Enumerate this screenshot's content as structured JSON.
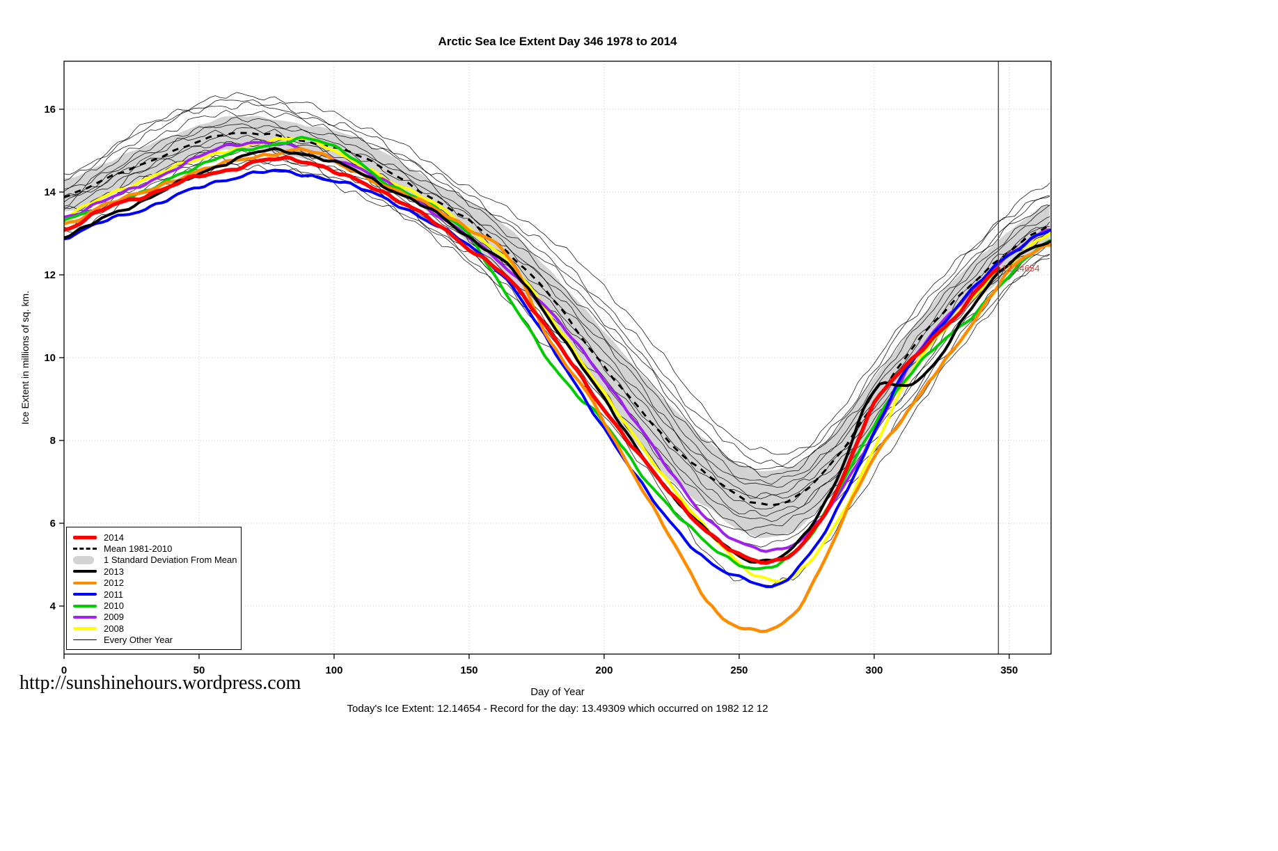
{
  "page": {
    "title": "Arctic Sea Ice Extent Day 346 1978 to 2014",
    "url_text": "http://sunshinehours.wordpress.com",
    "footer_caption": "Today's Ice Extent: 12.14654  - Record for the day: 13.49309 which occurred on 1982 12 12"
  },
  "chart_data": {
    "type": "line",
    "title": "Arctic Sea Ice Extent Day 346 1978 to 2014",
    "xlabel": "Day of Year",
    "ylabel": "Ice Extent in millions of sq. km.",
    "xlim": [
      0,
      365.5
    ],
    "ylim": [
      2.84,
      17.16
    ],
    "x_ticks": [
      0,
      50,
      100,
      150,
      200,
      250,
      300,
      350
    ],
    "y_ticks": [
      4,
      6,
      8,
      10,
      12,
      14,
      16
    ],
    "grid": "dotted",
    "legend_position": "bottom-left",
    "today_day": 346,
    "today_extent": 12.14654,
    "record_for_day": 13.49309,
    "record_date": "1982 12 12",
    "marker_line_x": 346,
    "annotation": {
      "x": 346,
      "y": 12.15,
      "text": "12.14654",
      "color": "#ff3333"
    },
    "band": {
      "name": "1 Standard Deviation From Mean",
      "color": "#d3d3d3",
      "x": [
        0,
        15,
        30,
        45,
        60,
        75,
        90,
        105,
        120,
        135,
        150,
        165,
        180,
        195,
        210,
        225,
        240,
        255,
        270,
        285,
        300,
        315,
        330,
        345,
        365
      ],
      "upper": [
        14.3,
        14.7,
        15.1,
        15.5,
        15.8,
        15.8,
        15.6,
        15.4,
        14.9,
        14.3,
        13.8,
        13.1,
        12.1,
        11.0,
        9.9,
        8.8,
        7.9,
        7.3,
        7.4,
        8.2,
        9.5,
        10.8,
        11.9,
        12.8,
        13.7
      ],
      "lower": [
        13.5,
        13.9,
        14.3,
        14.7,
        15.0,
        15.0,
        14.8,
        14.6,
        14.1,
        13.5,
        12.8,
        11.9,
        10.9,
        9.4,
        8.1,
        7.0,
        6.3,
        5.7,
        5.8,
        6.8,
        8.3,
        9.8,
        10.9,
        11.8,
        12.7
      ]
    },
    "mean": {
      "name": "Mean 1981-2010",
      "color": "#000000",
      "dashed": true,
      "width": 3,
      "x": [
        0,
        15,
        30,
        45,
        60,
        75,
        90,
        105,
        120,
        135,
        150,
        165,
        180,
        195,
        210,
        225,
        240,
        255,
        270,
        285,
        300,
        315,
        330,
        345,
        365
      ],
      "y": [
        13.9,
        14.3,
        14.7,
        15.1,
        15.4,
        15.4,
        15.2,
        15.0,
        14.5,
        13.9,
        13.3,
        12.5,
        11.5,
        10.2,
        9.0,
        7.9,
        7.1,
        6.5,
        6.6,
        7.5,
        8.9,
        10.3,
        11.4,
        12.3,
        13.2
      ]
    },
    "series": [
      {
        "name": "2014",
        "color": "#ff0000",
        "width": 5.5,
        "x": [
          0,
          15,
          30,
          45,
          60,
          75,
          90,
          105,
          120,
          135,
          150,
          165,
          180,
          195,
          210,
          225,
          240,
          255,
          270,
          285,
          300,
          315,
          330,
          346
        ],
        "y": [
          13.1,
          13.6,
          13.9,
          14.3,
          14.5,
          14.8,
          14.7,
          14.4,
          13.9,
          13.4,
          12.6,
          11.9,
          10.6,
          9.2,
          7.9,
          6.7,
          5.7,
          5.1,
          5.3,
          6.6,
          8.9,
          10.0,
          11.0,
          12.15
        ]
      },
      {
        "name": "2013",
        "color": "#000000",
        "width": 4,
        "x": [
          0,
          15,
          30,
          45,
          60,
          75,
          90,
          105,
          120,
          135,
          150,
          165,
          180,
          195,
          210,
          225,
          240,
          255,
          270,
          285,
          300,
          310,
          320,
          335,
          350,
          365
        ],
        "y": [
          12.9,
          13.4,
          13.8,
          14.3,
          14.7,
          15.0,
          14.9,
          14.6,
          14.1,
          13.6,
          12.9,
          12.2,
          10.9,
          9.5,
          8.0,
          6.7,
          5.7,
          5.1,
          5.4,
          6.9,
          9.2,
          9.3,
          9.7,
          11.1,
          12.3,
          12.8
        ]
      },
      {
        "name": "2012",
        "color": "#ff8c00",
        "width": 4.5,
        "x": [
          0,
          15,
          30,
          45,
          60,
          75,
          90,
          105,
          120,
          135,
          150,
          165,
          180,
          195,
          210,
          225,
          240,
          250,
          260,
          270,
          280,
          290,
          300,
          310,
          320,
          335,
          350,
          365
        ],
        "y": [
          13.2,
          13.7,
          14.0,
          14.4,
          14.7,
          14.9,
          15.0,
          14.6,
          14.1,
          13.7,
          13.1,
          12.4,
          10.4,
          9.0,
          7.3,
          5.6,
          4.0,
          3.5,
          3.4,
          3.8,
          4.9,
          6.3,
          7.6,
          8.5,
          9.4,
          10.7,
          12.1,
          12.7
        ]
      },
      {
        "name": "2011",
        "color": "#0000ff",
        "width": 4,
        "x": [
          0,
          15,
          30,
          45,
          60,
          75,
          90,
          105,
          120,
          135,
          150,
          165,
          180,
          195,
          210,
          225,
          240,
          255,
          265,
          280,
          295,
          310,
          325,
          340,
          355,
          365
        ],
        "y": [
          12.9,
          13.3,
          13.6,
          14.0,
          14.3,
          14.5,
          14.4,
          14.2,
          13.8,
          13.3,
          12.7,
          11.8,
          10.3,
          8.8,
          7.3,
          6.0,
          5.0,
          4.6,
          4.55,
          5.6,
          7.5,
          9.5,
          10.8,
          11.9,
          12.7,
          13.1
        ]
      },
      {
        "name": "2010",
        "color": "#00cc00",
        "width": 4,
        "x": [
          0,
          15,
          30,
          45,
          60,
          75,
          90,
          105,
          120,
          135,
          150,
          160,
          170,
          180,
          190,
          200,
          215,
          230,
          245,
          260,
          275,
          290,
          305,
          320,
          335,
          350,
          365
        ],
        "y": [
          13.3,
          13.7,
          14.0,
          14.5,
          14.9,
          15.1,
          15.3,
          14.9,
          14.2,
          13.7,
          13.0,
          11.9,
          10.9,
          9.9,
          9.1,
          8.4,
          7.1,
          6.0,
          5.2,
          4.9,
          5.6,
          7.2,
          8.9,
          10.1,
          10.9,
          12.0,
          12.8
        ]
      },
      {
        "name": "2009",
        "color": "#a020f0",
        "width": 4,
        "x": [
          0,
          15,
          30,
          45,
          60,
          75,
          90,
          105,
          120,
          135,
          150,
          165,
          180,
          195,
          210,
          225,
          240,
          255,
          270,
          285,
          300,
          315,
          330,
          345,
          365
        ],
        "y": [
          13.4,
          13.8,
          14.2,
          14.7,
          15.1,
          15.2,
          15.0,
          14.7,
          14.2,
          13.6,
          12.9,
          12.1,
          11.1,
          9.9,
          8.6,
          7.2,
          6.0,
          5.4,
          5.5,
          6.5,
          8.2,
          10.0,
          11.2,
          12.2,
          13.1
        ]
      },
      {
        "name": "2008",
        "color": "#ffff00",
        "width": 4,
        "x": [
          0,
          15,
          30,
          45,
          60,
          75,
          90,
          105,
          120,
          135,
          150,
          165,
          180,
          195,
          210,
          225,
          240,
          255,
          270,
          285,
          300,
          315,
          330,
          345,
          365
        ],
        "y": [
          13.4,
          13.9,
          14.3,
          14.7,
          15.0,
          15.2,
          15.3,
          14.8,
          14.3,
          13.8,
          13.1,
          12.3,
          11.0,
          9.6,
          8.2,
          6.9,
          5.7,
          4.8,
          4.7,
          5.9,
          7.8,
          9.8,
          11.0,
          12.0,
          13.0
        ]
      }
    ],
    "other_years": {
      "name": "Every Other Year",
      "color": "#000000",
      "x": [
        0,
        30,
        60,
        90,
        120,
        150,
        180,
        210,
        240,
        260,
        280,
        310,
        340,
        365
      ],
      "lines": [
        [
          14.3,
          15.6,
          16.3,
          16.1,
          15.3,
          14.1,
          12.9,
          11.0,
          8.6,
          7.7,
          8.2,
          10.8,
          12.9,
          14.2
        ],
        [
          14.1,
          15.4,
          16.1,
          15.9,
          15.1,
          13.9,
          12.6,
          10.6,
          8.3,
          7.5,
          8.0,
          10.6,
          12.8,
          14.0
        ],
        [
          14.4,
          15.5,
          16.2,
          15.8,
          15.0,
          13.8,
          12.4,
          10.4,
          8.0,
          7.3,
          7.9,
          10.4,
          12.6,
          13.9
        ],
        [
          13.9,
          15.2,
          15.9,
          15.7,
          14.9,
          13.7,
          12.2,
          10.2,
          7.9,
          7.2,
          7.8,
          10.2,
          12.5,
          13.7
        ],
        [
          14.0,
          15.0,
          15.7,
          15.5,
          14.7,
          13.5,
          12.0,
          10.0,
          7.7,
          7.0,
          7.6,
          10.0,
          12.3,
          13.6
        ],
        [
          13.8,
          14.9,
          15.6,
          15.4,
          14.6,
          13.4,
          11.8,
          9.8,
          7.5,
          6.9,
          7.5,
          9.8,
          12.2,
          13.4
        ],
        [
          13.7,
          14.8,
          15.5,
          15.2,
          14.5,
          13.3,
          11.7,
          9.6,
          7.3,
          6.7,
          7.3,
          9.6,
          12.0,
          13.3
        ],
        [
          13.9,
          14.7,
          15.3,
          15.1,
          14.3,
          13.1,
          11.5,
          9.4,
          7.2,
          6.6,
          7.2,
          9.5,
          11.9,
          13.2
        ],
        [
          13.6,
          14.6,
          15.2,
          15.0,
          14.2,
          13.0,
          11.3,
          9.2,
          7.0,
          6.4,
          7.1,
          9.3,
          11.8,
          13.0
        ],
        [
          13.5,
          14.5,
          15.1,
          14.9,
          14.1,
          12.9,
          11.2,
          9.0,
          6.8,
          6.2,
          6.9,
          9.1,
          11.6,
          12.9
        ],
        [
          13.4,
          14.4,
          15.0,
          14.8,
          14.0,
          12.8,
          11.0,
          8.8,
          6.6,
          6.1,
          6.8,
          9.0,
          11.5,
          12.8
        ],
        [
          13.3,
          14.3,
          14.9,
          14.7,
          13.9,
          12.6,
          10.8,
          8.6,
          6.4,
          5.9,
          6.6,
          8.8,
          11.3,
          12.7
        ],
        [
          13.2,
          14.2,
          14.8,
          14.6,
          13.8,
          12.5,
          10.7,
          8.4,
          6.2,
          5.7,
          6.4,
          8.6,
          11.2,
          12.6
        ],
        [
          13.1,
          14.1,
          14.7,
          14.5,
          13.7,
          12.4,
          10.5,
          8.2,
          6.0,
          5.5,
          6.2,
          8.5,
          11.0,
          12.5
        ],
        [
          13.0,
          14.0,
          14.6,
          14.4,
          13.6,
          12.3,
          10.2,
          7.8,
          5.2,
          4.5,
          5.4,
          8.2,
          10.9,
          12.4
        ]
      ]
    }
  },
  "legend": {
    "items": [
      {
        "label": "2014",
        "swatch": "line",
        "color": "#ff0000",
        "weight": 5
      },
      {
        "label": "Mean 1981-2010",
        "swatch": "dashed",
        "color": "#000000",
        "weight": 3
      },
      {
        "label": "1 Standard Deviation From Mean",
        "swatch": "band",
        "color": "#d3d3d3",
        "weight": 12
      },
      {
        "label": "2013",
        "swatch": "line",
        "color": "#000000",
        "weight": 4
      },
      {
        "label": "2012",
        "swatch": "line",
        "color": "#ff8c00",
        "weight": 4
      },
      {
        "label": "2011",
        "swatch": "line",
        "color": "#0000ff",
        "weight": 4
      },
      {
        "label": "2010",
        "swatch": "line",
        "color": "#00cc00",
        "weight": 4
      },
      {
        "label": "2009",
        "swatch": "line",
        "color": "#a020f0",
        "weight": 4
      },
      {
        "label": "2008",
        "swatch": "line",
        "color": "#ffff00",
        "weight": 4
      },
      {
        "label": "Every Other Year",
        "swatch": "line",
        "color": "#000000",
        "weight": 1
      }
    ]
  }
}
